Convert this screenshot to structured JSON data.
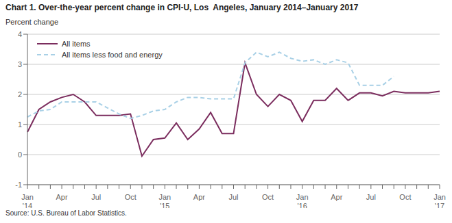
{
  "chart_data": {
    "type": "line",
    "title": "Chart 1. Over-the-year percent change in CPI-U, Los  Angeles, January 2014–January 2017",
    "ylabel": "Percent change",
    "annotations": [
      "Source: U.S. Bureau of Labor Statistics."
    ],
    "categories": [
      "Jan\n'14",
      null,
      null,
      "Apr",
      null,
      null,
      "Jul",
      null,
      null,
      "Oct",
      null,
      null,
      "Jan\n'15",
      null,
      null,
      "Apr",
      null,
      null,
      "Jul",
      null,
      null,
      "Oct",
      null,
      null,
      "Jan\n'16",
      null,
      null,
      "Apr",
      null,
      null,
      "Jul",
      null,
      null,
      "Oct",
      null,
      null,
      "Jan\n'17"
    ],
    "series": [
      {
        "name": "All items",
        "color": "#7B2D5E",
        "line_style": "solid",
        "values": [
          0.75,
          1.5,
          1.75,
          1.9,
          2.0,
          1.75,
          1.3,
          1.3,
          1.3,
          1.35,
          -0.05,
          0.5,
          0.55,
          1.05,
          0.5,
          0.85,
          1.4,
          0.7,
          0.7,
          3.05,
          2.0,
          1.6,
          2.0,
          1.8,
          1.1,
          1.8,
          1.8,
          2.2,
          1.8,
          2.05,
          2.05,
          1.95,
          2.1,
          2.05,
          2.05,
          2.05,
          2.1
        ]
      },
      {
        "name": "All items less food and energy",
        "color": "#A8D0E6",
        "line_style": "dashed",
        "values": [
          1.25,
          1.45,
          1.5,
          1.75,
          1.75,
          1.75,
          1.75,
          1.55,
          1.35,
          1.2,
          1.3,
          1.45,
          1.5,
          1.75,
          1.9,
          1.9,
          1.85,
          1.85,
          1.85,
          3.05,
          3.4,
          3.25,
          3.4,
          3.2,
          3.1,
          3.15,
          3.0,
          3.15,
          3.05,
          2.3,
          2.3,
          2.3,
          2.6,
          null,
          null,
          null,
          null
        ]
      }
    ],
    "ylim": [
      -1.0,
      4.0
    ],
    "yticks": [
      -1.0,
      0.0,
      1.0,
      2.0,
      3.0,
      4.0
    ],
    "grid": true,
    "legend": "upper left"
  }
}
